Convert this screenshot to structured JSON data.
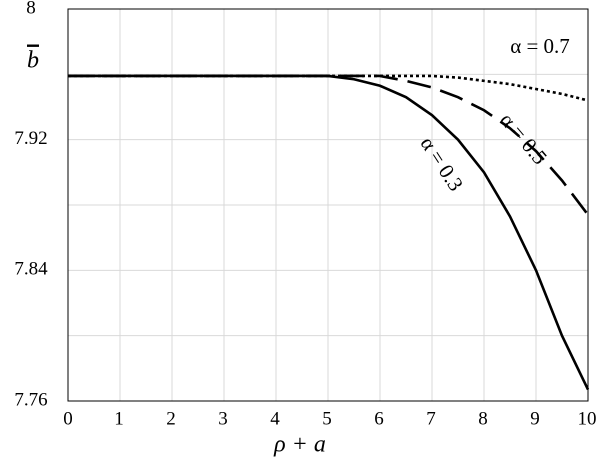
{
  "chart_data": {
    "type": "line",
    "x_label": "ρ + a",
    "y_label": "b",
    "x": [
      0,
      1,
      2,
      3,
      4,
      5,
      5.5,
      6,
      6.5,
      7,
      7.5,
      8,
      8.5,
      9,
      9.5,
      10
    ],
    "series": [
      {
        "name": "α = 0.3",
        "color": "#000000",
        "dash": "solid",
        "values": [
          7.959,
          7.959,
          7.959,
          7.959,
          7.959,
          7.959,
          7.957,
          7.953,
          7.946,
          7.935,
          7.92,
          7.9,
          7.873,
          7.84,
          7.8,
          7.767
        ]
      },
      {
        "name": "α = 0.5",
        "color": "#000000",
        "dash": "dashed",
        "values": [
          7.959,
          7.959,
          7.959,
          7.959,
          7.959,
          7.959,
          7.959,
          7.959,
          7.956,
          7.952,
          7.946,
          7.938,
          7.927,
          7.913,
          7.895,
          7.874
        ]
      },
      {
        "name": "α = 0.7",
        "color": "#000000",
        "dash": "dotted",
        "values": [
          7.959,
          7.959,
          7.959,
          7.959,
          7.959,
          7.959,
          7.959,
          7.959,
          7.959,
          7.959,
          7.958,
          7.956,
          7.954,
          7.951,
          7.948,
          7.944
        ]
      }
    ],
    "xlim": [
      0,
      10
    ],
    "xticks": [
      0,
      1,
      2,
      3,
      4,
      5,
      6,
      7,
      8,
      9,
      10
    ],
    "ylim": [
      7.76,
      8
    ],
    "yticks": [
      7.76,
      7.84,
      7.92,
      8
    ],
    "yminor_grid": [
      7.8,
      7.88,
      7.96
    ],
    "grid": true
  }
}
